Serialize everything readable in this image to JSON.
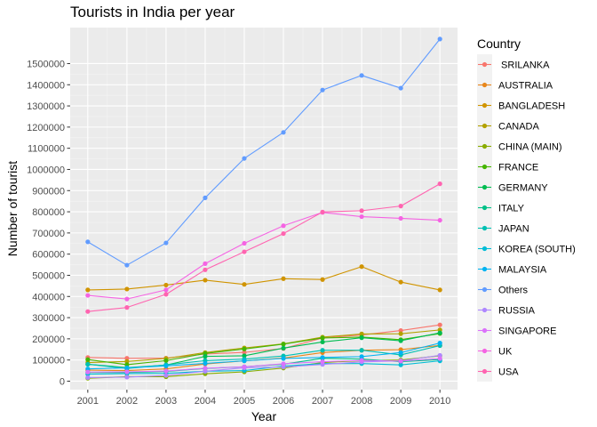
{
  "chart_data": {
    "type": "line",
    "title": "Tourists in India per year",
    "xlabel": "Year",
    "ylabel": "Number of tourist",
    "x": [
      2001,
      2002,
      2003,
      2004,
      2005,
      2006,
      2007,
      2008,
      2009,
      2010
    ],
    "xlim": [
      2000.55,
      2010.45
    ],
    "ylim": [
      -40000,
      1670000
    ],
    "yticks": [
      0,
      100000,
      200000,
      300000,
      400000,
      500000,
      600000,
      700000,
      800000,
      900000,
      1000000,
      1100000,
      1200000,
      1300000,
      1400000,
      1500000
    ],
    "ytick_labels": [
      "0",
      "100000",
      "200000",
      "300000",
      "400000",
      "500000",
      "600000",
      "700000",
      "800000",
      "900000",
      "1000000",
      "1100000",
      "1200000",
      "1300000",
      "1400000",
      "1500000"
    ],
    "xtick_labels": [
      "2001",
      "2002",
      "2003",
      "2004",
      "2005",
      "2006",
      "2007",
      "2008",
      "2009",
      "2010"
    ],
    "grid": true,
    "legend_title": "Country",
    "legend_position": "right",
    "series": [
      {
        "name": " SRILANKA",
        "color": "#F8766D",
        "values": [
          112000,
          108000,
          109000,
          128000,
          136000,
          154000,
          204000,
          218000,
          239000,
          266000
        ]
      },
      {
        "name": "AUSTRALIA",
        "color": "#E7861B",
        "values": [
          52000,
          50000,
          58000,
          81000,
          96000,
          109000,
          135000,
          146000,
          149000,
          169000
        ]
      },
      {
        "name": "BANGLADESH",
        "color": "#D09400",
        "values": [
          431000,
          435000,
          454000,
          477000,
          457000,
          484000,
          480000,
          541000,
          468000,
          431000
        ]
      },
      {
        "name": "CANADA",
        "color": "#B2A100",
        "values": [
          88000,
          93000,
          107000,
          135000,
          157000,
          176000,
          208000,
          223000,
          224000,
          242000
        ]
      },
      {
        "name": "CHINA (MAIN)",
        "color": "#89AC00",
        "values": [
          14000,
          21000,
          21000,
          35000,
          44000,
          62000,
          88000,
          97000,
          100000,
          120000
        ]
      },
      {
        "name": "FRANCE",
        "color": "#45B500",
        "values": [
          102000,
          78000,
          97000,
          131000,
          152000,
          175000,
          204000,
          208000,
          196000,
          225000
        ]
      },
      {
        "name": "GERMANY",
        "color": "#00BC51",
        "values": [
          80000,
          64000,
          76000,
          117000,
          120000,
          156000,
          185000,
          205000,
          191000,
          228000
        ]
      },
      {
        "name": "ITALY",
        "color": "#00C087",
        "values": [
          41000,
          41000,
          46000,
          60000,
          68000,
          80000,
          108000,
          104000,
          92000,
          102000
        ]
      },
      {
        "name": "JAPAN",
        "color": "#00C0B2",
        "values": [
          80000,
          60000,
          77000,
          97000,
          104000,
          119000,
          146000,
          146000,
          124000,
          168000
        ]
      },
      {
        "name": "KOREA (SOUTH)",
        "color": "#00BCD6",
        "values": [
          33000,
          36000,
          37000,
          47000,
          50000,
          71000,
          83000,
          83000,
          77000,
          96000
        ]
      },
      {
        "name": "MALAYSIA",
        "color": "#00B3F2",
        "values": [
          58000,
          63000,
          72000,
          84000,
          96000,
          107000,
          112000,
          116000,
          135000,
          180000
        ]
      },
      {
        "name": "Others",
        "color": "#619CFF",
        "values": [
          658000,
          548000,
          653000,
          866000,
          1052000,
          1175000,
          1375000,
          1444000,
          1384000,
          1616000
        ]
      },
      {
        "name": "RUSSIA",
        "color": "#AE87FF",
        "values": [
          17000,
          19000,
          27000,
          47000,
          63000,
          67000,
          79000,
          91000,
          96000,
          122000
        ]
      },
      {
        "name": "SINGAPORE",
        "color": "#DB72FB",
        "values": [
          43000,
          44000,
          48000,
          61000,
          68000,
          82000,
          92000,
          98000,
          95000,
          107000
        ]
      },
      {
        "name": "UK",
        "color": "#F564E3",
        "values": [
          405000,
          388000,
          431000,
          555000,
          651000,
          734000,
          797000,
          777000,
          769000,
          760000
        ]
      },
      {
        "name": "USA",
        "color": "#FF64B0",
        "values": [
          329000,
          348000,
          410000,
          526000,
          611000,
          697000,
          799000,
          805000,
          827000,
          932000
        ]
      }
    ]
  }
}
